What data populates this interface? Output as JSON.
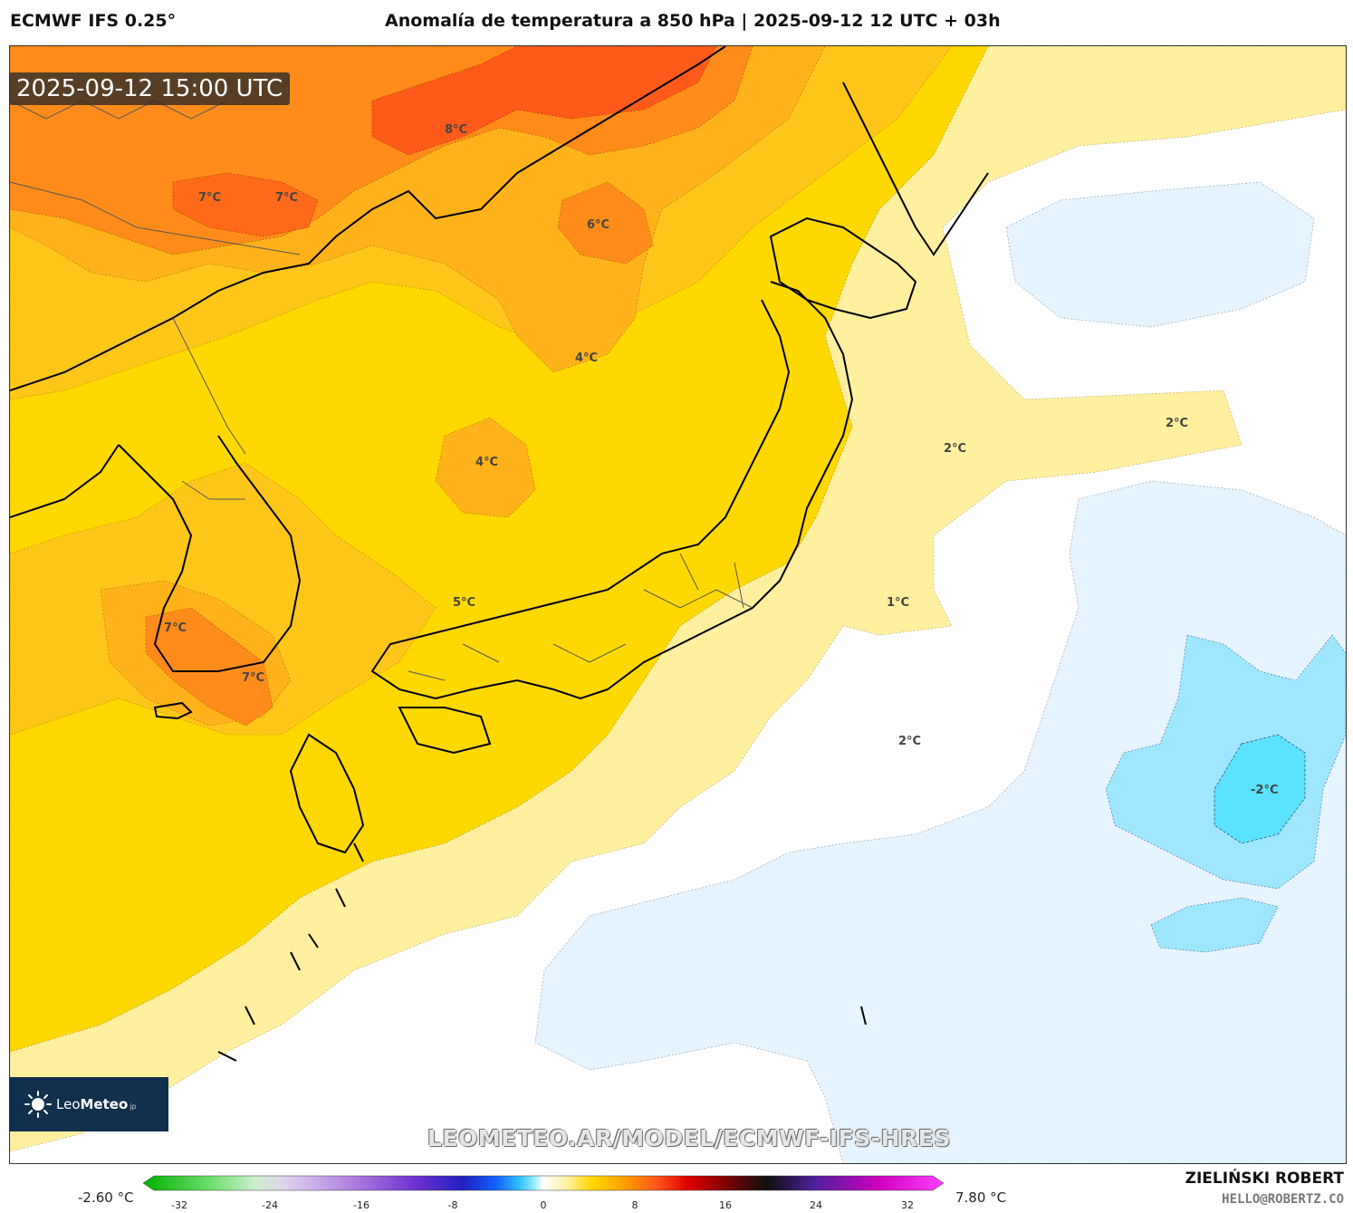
{
  "header": {
    "model": "ECMWF IFS 0.25°",
    "title": "Anomalía de temperatura a 850 hPa | 2025-09-12 12 UTC + 03h"
  },
  "map": {
    "valid_time": "2025-09-12 15:00 UTC",
    "watermark": "LEOMETEO.AR/MODEL/ECMWF-IFS-HRES",
    "logo": {
      "name": "LeoMeteo",
      "prefix": "Leo",
      "bold": "Meteo",
      "suffix": "jp",
      "icon": "sun-icon"
    },
    "labels": [
      {
        "text": "8°C"
      },
      {
        "text": "7°C"
      },
      {
        "text": "7°C"
      },
      {
        "text": "6°C"
      },
      {
        "text": "4°C"
      },
      {
        "text": "4°C"
      },
      {
        "text": "5°C"
      },
      {
        "text": "7°C"
      },
      {
        "text": "7°C"
      },
      {
        "text": "2°C"
      },
      {
        "text": "2°C"
      },
      {
        "text": "1°C"
      },
      {
        "text": "2°C"
      },
      {
        "text": "-2°C"
      }
    ]
  },
  "legend": {
    "min_label": "-2.60 °C",
    "max_label": "7.80 °C",
    "ticks": [
      "-32",
      "-24",
      "-16",
      "-8",
      "0",
      "8",
      "16",
      "24",
      "32"
    ]
  },
  "credits": {
    "author": "ZIELIŃSKI ROBERT",
    "email": "HELLO@ROBERTZ.CO"
  },
  "colors": {
    "anom_8": "#ff5a1a",
    "anom_6": "#ff8c1a",
    "anom_4": "#ffb21a",
    "anom_3": "#ffc61a",
    "anom_2": "#ffd800",
    "anom_1": "#fff0a0",
    "anom_0": "#ffffff",
    "anom_m1": "#e6f4ff",
    "anom_m2": "#9fe7ff",
    "anom_m3": "#5ae2ff",
    "coast": "#000000",
    "border": "#555555"
  }
}
